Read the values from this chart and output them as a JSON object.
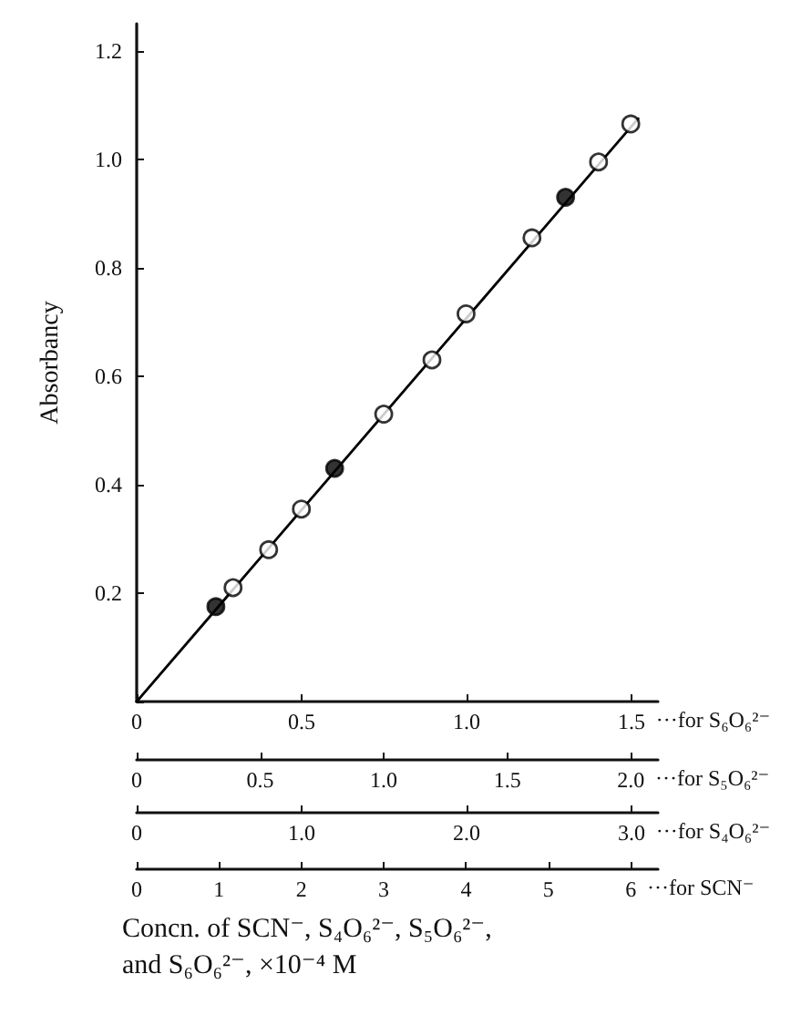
{
  "chart_data": [
    {
      "type": "scatter",
      "ylabel": "Absorbancy",
      "xlabel": "···for S₆O₆²⁻",
      "x2label": "···for S₅O₆²⁻",
      "xlim": [
        0,
        1.58
      ],
      "xticks": [
        {
          "value": 0,
          "label": "0"
        },
        {
          "value": 0.5,
          "label": "0.5"
        },
        {
          "value": 1,
          "label": "1.0"
        },
        {
          "value": 1.5,
          "label": "1.5"
        }
      ],
      "x2lim": [
        0,
        2.11
      ],
      "x2ticks": [
        {
          "value": 0,
          "label": "0"
        },
        {
          "value": 0.5,
          "label": "0.5"
        },
        {
          "value": 1,
          "label": "1.0"
        },
        {
          "value": 1.5,
          "label": "1.5"
        },
        {
          "value": 2,
          "label": "2.0"
        }
      ],
      "ylim": [
        0,
        1.25
      ],
      "yticks": [
        {
          "value": 0,
          "label": null
        },
        {
          "value": 0.2,
          "label": "0.2"
        },
        {
          "value": 0.4,
          "label": "0.4"
        },
        {
          "value": 0.6,
          "label": "0.6"
        },
        {
          "value": 0.8,
          "label": "0.8"
        },
        {
          "value": 1,
          "label": "1.0"
        },
        {
          "value": 1.2,
          "label": "1.2"
        }
      ],
      "grid": false,
      "marker": "circle",
      "series": [
        {
          "color": "#ffffff",
          "x": [
            0.4,
            0.895,
            1.4
          ],
          "values": [
            0.28,
            0.63,
            0.995
          ]
        },
        {
          "color": "#ffffff",
          "axis": "x2",
          "x": [
            0.39,
            1.0,
            1.6
          ],
          "values": [
            0.21,
            0.53,
            0.855
          ]
        },
        {
          "type": "line",
          "color": "#000000",
          "x": [
            0,
            1.52
          ],
          "values": [
            0,
            1.075
          ],
          "marker": "none"
        }
      ]
    },
    {
      "type": "scatter",
      "xlabel": "···for S₄O₆²⁻",
      "tick_labels": "x",
      "marker": "circle",
      "xlim": [
        0,
        3.16
      ],
      "xticks": [
        {
          "value": 0,
          "label": "0"
        },
        {
          "value": 1,
          "label": "1.0"
        },
        {
          "value": 2,
          "label": "2.0"
        },
        {
          "value": 3,
          "label": "3.0"
        }
      ],
      "ylim": [
        0,
        1.25
      ],
      "series": [
        {
          "color": "#000000",
          "x": [
            0.48,
            1.2,
            2.6
          ],
          "values": [
            0.175,
            0.43,
            0.93
          ]
        }
      ]
    },
    {
      "type": "scatter",
      "xlabel": "···for SCN⁻",
      "tick_labels": "x",
      "marker": "circle",
      "xlim": [
        0,
        6.33
      ],
      "xticks": [
        0,
        1,
        2,
        3,
        4,
        5,
        6
      ],
      "ylim": [
        0,
        1.25
      ],
      "series": [
        {
          "color": "#ffffff",
          "x": [
            2,
            4,
            6
          ],
          "values": [
            0.355,
            0.715,
            1.065
          ]
        }
      ],
      "annotations": [
        "Concn. of SCN⁻, S₄O₆²⁻, S₅O₆²⁻, and S₆O₆²⁻, ×10⁻⁴ M"
      ]
    }
  ]
}
